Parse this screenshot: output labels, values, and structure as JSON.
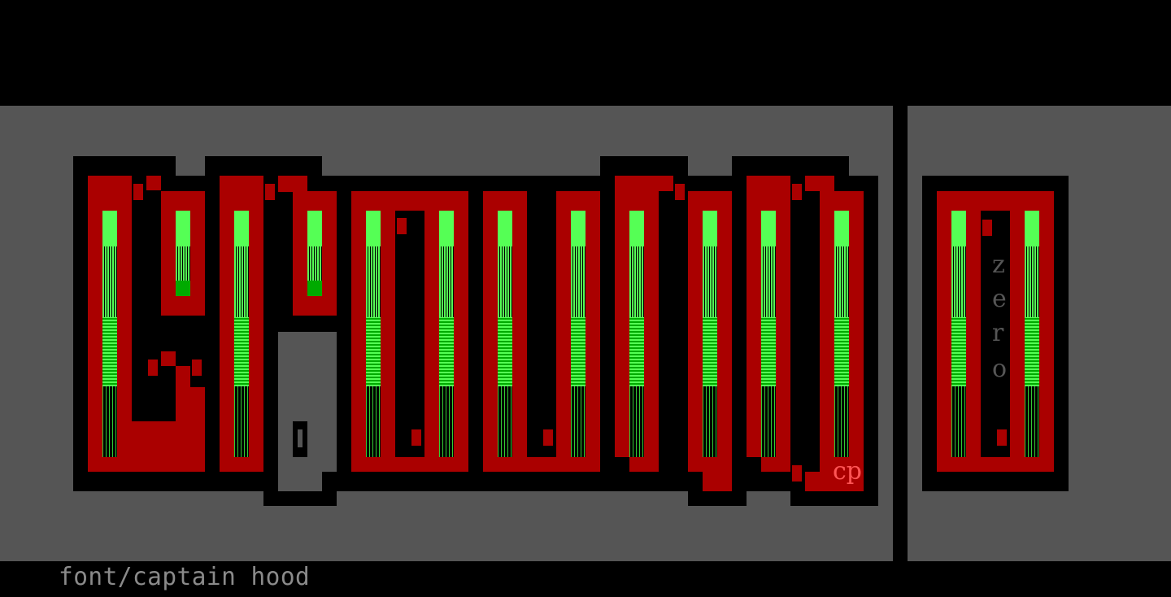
{
  "artwork": {
    "caption": "font/captain hood",
    "signature": "cp",
    "side_panel_text": [
      "z",
      "e",
      "r",
      "o"
    ],
    "colors": {
      "background": "#555555",
      "outline": "#000000",
      "letter_fill": "#aa0000",
      "bar_bright": "#55ff55",
      "bar_dark": "#00aa00",
      "signature": "#ff5555",
      "caption": "#8a8a8a"
    }
  }
}
